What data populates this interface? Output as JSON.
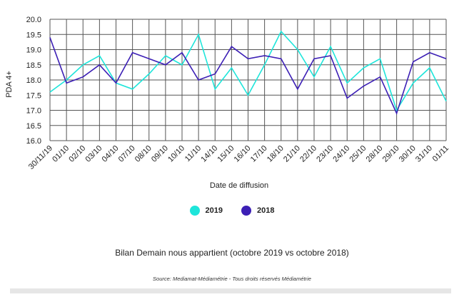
{
  "colors": {
    "series_2019": "#1ee5da",
    "series_2018": "#3c1fb5",
    "grid": "#555555",
    "footer_bar": "#e6e6e6"
  },
  "chart_data": {
    "type": "line",
    "xlabel": "Date de diffusion",
    "ylabel": "PDA 4+",
    "ylim": [
      16.0,
      20.0
    ],
    "yticks": [
      "16.0",
      "16.5",
      "17.0",
      "17.5",
      "18.0",
      "18.5",
      "19.0",
      "19.5",
      "20.0"
    ],
    "categories": [
      "30/11/19",
      "01/10",
      "02/10",
      "03/10",
      "04/10",
      "07/10",
      "08/10",
      "09/10",
      "10/10",
      "11/10",
      "14/10",
      "15/10",
      "16/10",
      "17/10",
      "18/10",
      "21/10",
      "22/10",
      "23/10",
      "24/10",
      "25/10",
      "28/10",
      "29/10",
      "30/10",
      "31/10",
      "01/11"
    ],
    "grid": true,
    "legend_position": "bottom",
    "series": [
      {
        "name": "2019",
        "values": [
          17.6,
          18.0,
          18.5,
          18.8,
          17.9,
          17.7,
          18.2,
          18.8,
          18.5,
          19.5,
          17.7,
          18.4,
          17.5,
          18.5,
          19.6,
          19.0,
          18.1,
          19.1,
          17.9,
          18.4,
          18.7,
          17.0,
          17.9,
          18.4,
          17.3
        ]
      },
      {
        "name": "2018",
        "values": [
          19.4,
          17.9,
          18.1,
          18.5,
          17.9,
          18.9,
          18.7,
          18.5,
          18.9,
          18.0,
          18.2,
          19.1,
          18.7,
          18.8,
          18.7,
          17.7,
          18.7,
          18.8,
          17.4,
          17.8,
          18.1,
          16.9,
          18.6,
          18.9,
          18.7
        ]
      }
    ]
  },
  "legend": {
    "label_2019": "2019",
    "label_2018": "2018"
  },
  "caption": "Bilan Demain nous appartient (octobre 2019 vs octobre 2018)",
  "source": "Source: Mediamat-Médiamétrie - Tous droits réservés Médiamétrie"
}
